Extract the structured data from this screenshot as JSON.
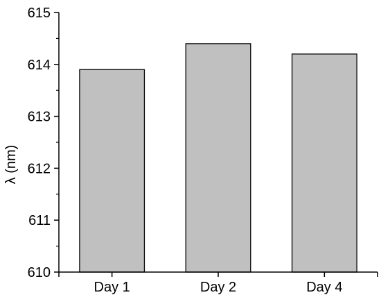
{
  "chart_data": {
    "type": "bar",
    "title": "",
    "xlabel": "",
    "ylabel": "λ (nm)",
    "categories": [
      "Day 1",
      "Day 2",
      "Day 4"
    ],
    "values": [
      613.9,
      614.4,
      614.2
    ],
    "ylim": [
      610,
      615
    ],
    "yticks": [
      610,
      611,
      612,
      613,
      614,
      615
    ],
    "ytick_labels": [
      "610",
      "611",
      "612",
      "613",
      "614",
      "615"
    ],
    "grid": false,
    "legend": "none",
    "colors": {
      "bar_fill": "#c0c0c0",
      "bar_stroke": "#000000",
      "axis": "#000000"
    }
  }
}
